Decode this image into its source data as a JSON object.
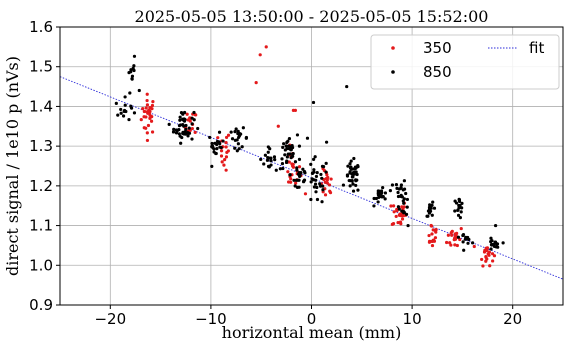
{
  "chart_data": {
    "type": "scatter",
    "title": "2025-05-05 13:50:00 - 2025-05-05 15:52:00",
    "xlabel": "horizontal mean (mm)",
    "ylabel": "direct signal / 1e10 p (nVs)",
    "xlim": [
      -25,
      25
    ],
    "ylim": [
      0.9,
      1.6
    ],
    "x_ticks": [
      -20,
      -10,
      0,
      10,
      20
    ],
    "x_tick_labels": [
      "−20",
      "−10",
      "0",
      "10",
      "20"
    ],
    "y_ticks": [
      0.9,
      1.0,
      1.1,
      1.2,
      1.3,
      1.4,
      1.5,
      1.6
    ],
    "y_tick_labels": [
      "0.9",
      "1.0",
      "1.1",
      "1.2",
      "1.3",
      "1.4",
      "1.5",
      "1.6"
    ],
    "grid": true,
    "legend_position": "top-right",
    "series": [
      {
        "name": "350",
        "color": "#e41a1c",
        "marker": "dot",
        "clusters": [
          {
            "x": -16.2,
            "y": 1.38,
            "n": 30,
            "sx": 0.35,
            "sy": 0.025
          },
          {
            "x": -12.0,
            "y": 1.35,
            "n": 18,
            "sx": 0.3,
            "sy": 0.02
          },
          {
            "x": -8.7,
            "y": 1.29,
            "n": 16,
            "sx": 0.3,
            "sy": 0.025
          },
          {
            "x": -1.9,
            "y": 1.24,
            "n": 22,
            "sx": 0.4,
            "sy": 0.025
          },
          {
            "x": 1.5,
            "y": 1.2,
            "n": 18,
            "sx": 0.3,
            "sy": 0.02
          },
          {
            "x": 8.7,
            "y": 1.13,
            "n": 26,
            "sx": 0.35,
            "sy": 0.018
          },
          {
            "x": 12.0,
            "y": 1.08,
            "n": 18,
            "sx": 0.3,
            "sy": 0.018
          },
          {
            "x": 14.3,
            "y": 1.07,
            "n": 20,
            "sx": 0.4,
            "sy": 0.015
          },
          {
            "x": 17.4,
            "y": 1.03,
            "n": 20,
            "sx": 0.35,
            "sy": 0.015
          }
        ],
        "points": [
          [
            -5.1,
            1.53
          ],
          [
            -4.5,
            1.55
          ],
          [
            -5.5,
            1.46
          ],
          [
            -3.3,
            1.35
          ],
          [
            -1.8,
            1.39
          ],
          [
            -1.6,
            1.39
          ],
          [
            -0.6,
            1.18
          ]
        ]
      },
      {
        "name": "850",
        "color": "#000000",
        "marker": "dot",
        "clusters": [
          {
            "x": -17.8,
            "y": 1.48,
            "n": 12,
            "sx": 0.25,
            "sy": 0.02
          },
          {
            "x": -18.5,
            "y": 1.39,
            "n": 14,
            "sx": 0.5,
            "sy": 0.015
          },
          {
            "x": -12.7,
            "y": 1.35,
            "n": 45,
            "sx": 0.5,
            "sy": 0.02
          },
          {
            "x": -9.5,
            "y": 1.3,
            "n": 20,
            "sx": 0.4,
            "sy": 0.015
          },
          {
            "x": -7.2,
            "y": 1.32,
            "n": 20,
            "sx": 0.45,
            "sy": 0.012
          },
          {
            "x": -4.4,
            "y": 1.27,
            "n": 18,
            "sx": 0.4,
            "sy": 0.012
          },
          {
            "x": -2.3,
            "y": 1.28,
            "n": 30,
            "sx": 0.4,
            "sy": 0.02
          },
          {
            "x": -1.2,
            "y": 1.23,
            "n": 25,
            "sx": 0.45,
            "sy": 0.03
          },
          {
            "x": 0.5,
            "y": 1.21,
            "n": 30,
            "sx": 0.6,
            "sy": 0.03
          },
          {
            "x": 4.1,
            "y": 1.22,
            "n": 38,
            "sx": 0.35,
            "sy": 0.02
          },
          {
            "x": 7.0,
            "y": 1.18,
            "n": 22,
            "sx": 0.35,
            "sy": 0.012
          },
          {
            "x": 8.9,
            "y": 1.19,
            "n": 16,
            "sx": 0.3,
            "sy": 0.012
          },
          {
            "x": 9.2,
            "y": 1.15,
            "n": 12,
            "sx": 0.25,
            "sy": 0.012
          },
          {
            "x": 11.9,
            "y": 1.14,
            "n": 16,
            "sx": 0.25,
            "sy": 0.008
          },
          {
            "x": 14.6,
            "y": 1.15,
            "n": 16,
            "sx": 0.25,
            "sy": 0.01
          },
          {
            "x": 15.3,
            "y": 1.07,
            "n": 12,
            "sx": 0.3,
            "sy": 0.008
          },
          {
            "x": 18.1,
            "y": 1.05,
            "n": 18,
            "sx": 0.3,
            "sy": 0.008
          }
        ],
        "points": [
          [
            3.5,
            1.45
          ],
          [
            0.2,
            1.41
          ],
          [
            -0.4,
            1.32
          ],
          [
            1.5,
            1.31
          ],
          [
            -1.2,
            1.3
          ],
          [
            9.6,
            1.1
          ],
          [
            14.8,
            1.12
          ],
          [
            18.3,
            1.1
          ]
        ]
      }
    ],
    "fit": {
      "name": "fit",
      "color": "#2b2bd9",
      "style": "dotted",
      "slope": -0.0102,
      "intercept": 1.22
    }
  }
}
